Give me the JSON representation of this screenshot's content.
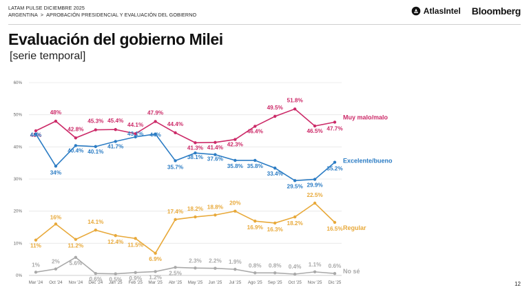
{
  "header": {
    "line1": "LATAM PULSE DICIEMBRE 2025",
    "country": "ARGENTINA",
    "separator": ">",
    "topic": "APROBACIÓN PRESIDENCIAL Y EVALUACIÓN DEL GOBIERNO"
  },
  "logos": {
    "atlas": "AtlasIntel",
    "bloomberg": "Bloomberg"
  },
  "page_number": "12",
  "chart_data": {
    "type": "line",
    "title": "Evaluación del gobierno Milei",
    "subtitle": "[serie temporal]",
    "categories": [
      "Mar '24",
      "Oct '24",
      "Nov '24",
      "Dec '24",
      "Jan '25",
      "Feb '25",
      "Mar '25",
      "Abr '25",
      "May '25",
      "Jun '25",
      "Jul '25",
      "Ago '25",
      "Sep '25",
      "Oct '25",
      "Nov '25",
      "Dic '25"
    ],
    "y_ticks": [
      "0%",
      "10%",
      "20%",
      "30%",
      "40%",
      "50%",
      "60%"
    ],
    "ylim": [
      0,
      60
    ],
    "grid": true,
    "series": [
      {
        "name": "Muy malo/malo",
        "color": "#cc2a68",
        "values": [
          45,
          48,
          42.8,
          45.3,
          45.4,
          44.1,
          47.9,
          44.4,
          41.3,
          41.4,
          42.3,
          46.4,
          49.5,
          51.8,
          46.5,
          47.7
        ],
        "labels": [
          "45%",
          "48%",
          "42.8%",
          "45.3%",
          "45.4%",
          "44.1%",
          "47.9%",
          "44.4%",
          "41.3%",
          "41.4%",
          "42.3%",
          "46.4%",
          "49.5%",
          "51.8%",
          "46.5%",
          "47.7%"
        ]
      },
      {
        "name": "Excelente/bueno",
        "color": "#2b7cc4",
        "values": [
          44,
          34,
          40.4,
          40.1,
          41.7,
          43.1,
          44,
          35.7,
          38.1,
          37.6,
          35.8,
          35.8,
          33.4,
          29.5,
          29.9,
          35.2
        ],
        "labels": [
          "44%",
          "34%",
          "40.4%",
          "40.1%",
          "41.7%",
          "43.1%",
          "44%",
          "35.7%",
          "38.1%",
          "37.6%",
          "35.8%",
          "35.8%",
          "33.4%",
          "29.5%",
          "29.9%",
          "35.2%"
        ]
      },
      {
        "name": "Regular",
        "color": "#e8a93a",
        "values": [
          11,
          16,
          11.2,
          14.1,
          12.4,
          11.5,
          6.9,
          17.4,
          18.2,
          18.8,
          20,
          16.9,
          16.3,
          18.2,
          22.5,
          16.5
        ],
        "labels": [
          "11%",
          "16%",
          "11.2%",
          "14.1%",
          "12.4%",
          "11.5%",
          "6.9%",
          "17.4%",
          "18.2%",
          "18.8%",
          "20%",
          "16.9%",
          "16.3%",
          "18.2%",
          "22.5%",
          "16.5%"
        ]
      },
      {
        "name": "No sé",
        "color": "#a9a9a9",
        "values": [
          1,
          2,
          5.6,
          0.6,
          0.5,
          0.9,
          1.2,
          2.5,
          2.3,
          2.2,
          1.9,
          0.8,
          0.8,
          0.4,
          1.1,
          0.6
        ],
        "labels": [
          "1%",
          "2%",
          "5.6%",
          "0.6%",
          "0.5%",
          "0.9%",
          "1.2%",
          "2.5%",
          "2.3%",
          "2.2%",
          "1.9%",
          "0.8%",
          "0.8%",
          "0.4%",
          "1.1%",
          "0.6%"
        ]
      }
    ]
  }
}
